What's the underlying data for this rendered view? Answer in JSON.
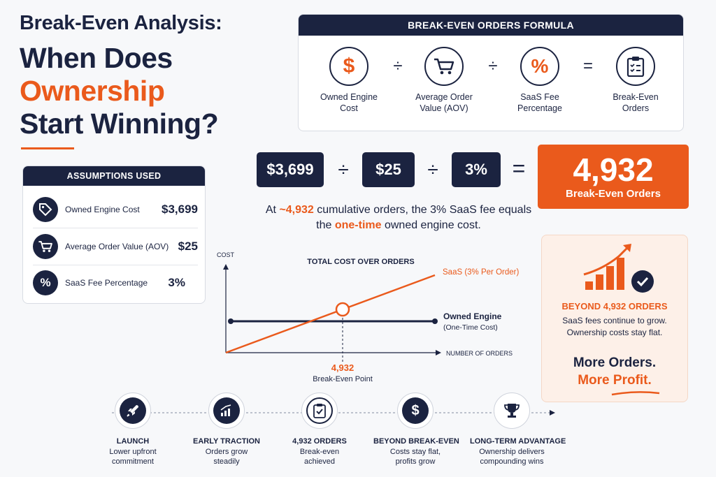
{
  "title": {
    "line1": "Break-Even Analysis:",
    "line2": "When Does",
    "line3": "Ownership",
    "line4": "Start Winning?"
  },
  "formula": {
    "header": "BREAK-EVEN ORDERS FORMULA",
    "items": [
      {
        "label": "Owned Engine Cost",
        "icon": "dollar-icon"
      },
      {
        "label": "Average Order Value (AOV)",
        "icon": "cart-icon"
      },
      {
        "label": "SaaS Fee Percentage",
        "icon": "percent-icon"
      },
      {
        "label": "Break-Even Orders",
        "icon": "clipboard-checklist-icon"
      }
    ],
    "op_divide": "÷",
    "op_equals": "="
  },
  "calc": {
    "cost": "$3,699",
    "aov": "$25",
    "fee": "3%",
    "result": "4,932",
    "result_label": "Break-Even Orders",
    "op_divide": "÷",
    "op_equals": "="
  },
  "statement": {
    "part1": "At ",
    "highlight1": "~4,932",
    "part2": " cumulative orders, the 3% SaaS fee equals the ",
    "highlight2": "one-time",
    "part3": " owned engine cost."
  },
  "assumptions": {
    "header": "ASSUMPTIONS USED",
    "rows": [
      {
        "label": "Owned Engine Cost",
        "value": "$3,699",
        "icon": "price-tag-icon"
      },
      {
        "label": "Average Order Value (AOV)",
        "value": "$25",
        "icon": "cart-icon"
      },
      {
        "label": "SaaS Fee Percentage",
        "value": "3%",
        "icon": "percent-icon"
      }
    ]
  },
  "chart_data": {
    "type": "line",
    "title": "TOTAL COST OVER ORDERS",
    "ylabel": "COST",
    "xlabel": "NUMBER OF ORDERS",
    "series": [
      {
        "name": "SaaS (3% Per Order)",
        "kind": "linear",
        "color": "#ea5a1c"
      },
      {
        "name": "Owned Engine",
        "sub": "(One-Time Cost)",
        "kind": "flat",
        "color": "#1b2340"
      }
    ],
    "breakeven": {
      "x_label": "4,932",
      "label": "Break-Even Point"
    }
  },
  "beyond": {
    "title": "BEYOND 4,932 ORDERS",
    "desc1": "SaaS fees continue to grow.",
    "desc2": "Ownership costs stay flat.",
    "more1": "More Orders.",
    "more2": "More Profit."
  },
  "timeline": [
    {
      "title": "LAUNCH",
      "desc1": "Lower upfront",
      "desc2": "commitment",
      "icon": "rocket-icon"
    },
    {
      "title": "EARLY TRACTION",
      "desc1": "Orders grow",
      "desc2": "steadily",
      "icon": "growth-chart-icon"
    },
    {
      "title": "4,932 ORDERS",
      "desc1": "Break-even",
      "desc2": "achieved",
      "icon": "clipboard-check-icon"
    },
    {
      "title": "BEYOND BREAK-EVEN",
      "desc1": "Costs stay flat,",
      "desc2": "profits grow",
      "icon": "dollar-growth-icon"
    },
    {
      "title": "LONG-TERM ADVANTAGE",
      "desc1": "Ownership delivers",
      "desc2": "compounding wins",
      "icon": "trophy-icon"
    }
  ],
  "colors": {
    "navy": "#1b2340",
    "orange": "#ea5a1c",
    "background": "#f7f8fa"
  }
}
